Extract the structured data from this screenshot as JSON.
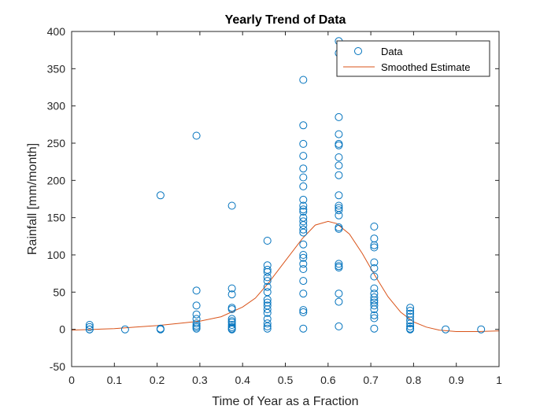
{
  "chart_data": {
    "type": "scatter",
    "title": "Yearly Trend of Data",
    "xlabel": "Time of Year as a Fraction",
    "ylabel": "Rainfall [mm/month]",
    "xlim": [
      0,
      1
    ],
    "ylim": [
      -50,
      400
    ],
    "xticks": [
      "0",
      "0.1",
      "0.2",
      "0.3",
      "0.4",
      "0.5",
      "0.6",
      "0.7",
      "0.8",
      "0.9",
      "1"
    ],
    "yticks": [
      "-50",
      "0",
      "50",
      "100",
      "150",
      "200",
      "250",
      "300",
      "350",
      "400"
    ],
    "xtick_values": [
      0,
      0.1,
      0.2,
      0.3,
      0.4,
      0.5,
      0.6,
      0.7,
      0.8,
      0.9,
      1
    ],
    "ytick_values": [
      -50,
      0,
      50,
      100,
      150,
      200,
      250,
      300,
      350,
      400
    ],
    "grid": false,
    "legend_placement": "top-right",
    "series": [
      {
        "name": "Data",
        "kind": "markers",
        "color": "#0072BD",
        "points": [
          [
            0.042,
            6
          ],
          [
            0.042,
            3
          ],
          [
            0.042,
            0
          ],
          [
            0.042,
            0
          ],
          [
            0.125,
            0
          ],
          [
            0.208,
            180
          ],
          [
            0.208,
            1
          ],
          [
            0.208,
            0
          ],
          [
            0.292,
            260
          ],
          [
            0.292,
            52
          ],
          [
            0.292,
            32
          ],
          [
            0.292,
            20
          ],
          [
            0.292,
            14
          ],
          [
            0.292,
            8
          ],
          [
            0.292,
            5
          ],
          [
            0.292,
            3
          ],
          [
            0.292,
            1
          ],
          [
            0.375,
            166
          ],
          [
            0.375,
            55
          ],
          [
            0.375,
            47
          ],
          [
            0.375,
            29
          ],
          [
            0.375,
            27
          ],
          [
            0.375,
            14
          ],
          [
            0.375,
            11
          ],
          [
            0.375,
            9
          ],
          [
            0.375,
            6
          ],
          [
            0.375,
            3
          ],
          [
            0.375,
            1
          ],
          [
            0.375,
            0
          ],
          [
            0.458,
            119
          ],
          [
            0.458,
            86
          ],
          [
            0.458,
            80
          ],
          [
            0.458,
            77
          ],
          [
            0.458,
            70
          ],
          [
            0.458,
            65
          ],
          [
            0.458,
            57
          ],
          [
            0.458,
            50
          ],
          [
            0.458,
            40
          ],
          [
            0.458,
            36
          ],
          [
            0.458,
            32
          ],
          [
            0.458,
            27
          ],
          [
            0.458,
            22
          ],
          [
            0.458,
            14
          ],
          [
            0.458,
            8
          ],
          [
            0.458,
            4
          ],
          [
            0.458,
            1
          ],
          [
            0.542,
            335
          ],
          [
            0.542,
            274
          ],
          [
            0.542,
            249
          ],
          [
            0.542,
            233
          ],
          [
            0.542,
            216
          ],
          [
            0.542,
            204
          ],
          [
            0.542,
            192
          ],
          [
            0.542,
            174
          ],
          [
            0.542,
            166
          ],
          [
            0.542,
            161
          ],
          [
            0.542,
            158
          ],
          [
            0.542,
            150
          ],
          [
            0.542,
            145
          ],
          [
            0.542,
            140
          ],
          [
            0.542,
            134
          ],
          [
            0.542,
            130
          ],
          [
            0.542,
            114
          ],
          [
            0.542,
            100
          ],
          [
            0.542,
            96
          ],
          [
            0.542,
            88
          ],
          [
            0.542,
            81
          ],
          [
            0.542,
            65
          ],
          [
            0.542,
            48
          ],
          [
            0.542,
            26
          ],
          [
            0.542,
            23
          ],
          [
            0.542,
            1
          ],
          [
            0.625,
            387
          ],
          [
            0.625,
            371
          ],
          [
            0.625,
            285
          ],
          [
            0.625,
            262
          ],
          [
            0.625,
            249
          ],
          [
            0.625,
            247
          ],
          [
            0.625,
            231
          ],
          [
            0.625,
            220
          ],
          [
            0.625,
            207
          ],
          [
            0.625,
            180
          ],
          [
            0.625,
            166
          ],
          [
            0.625,
            163
          ],
          [
            0.625,
            160
          ],
          [
            0.625,
            153
          ],
          [
            0.625,
            137
          ],
          [
            0.625,
            135
          ],
          [
            0.625,
            88
          ],
          [
            0.625,
            85
          ],
          [
            0.625,
            83
          ],
          [
            0.625,
            48
          ],
          [
            0.625,
            37
          ],
          [
            0.625,
            4
          ],
          [
            0.708,
            138
          ],
          [
            0.708,
            122
          ],
          [
            0.708,
            113
          ],
          [
            0.708,
            110
          ],
          [
            0.708,
            90
          ],
          [
            0.708,
            82
          ],
          [
            0.708,
            71
          ],
          [
            0.708,
            55
          ],
          [
            0.708,
            48
          ],
          [
            0.708,
            43
          ],
          [
            0.708,
            39
          ],
          [
            0.708,
            36
          ],
          [
            0.708,
            32
          ],
          [
            0.708,
            27
          ],
          [
            0.708,
            19
          ],
          [
            0.708,
            15
          ],
          [
            0.708,
            1
          ],
          [
            0.792,
            29
          ],
          [
            0.792,
            25
          ],
          [
            0.792,
            21
          ],
          [
            0.792,
            17
          ],
          [
            0.792,
            12
          ],
          [
            0.792,
            8
          ],
          [
            0.792,
            4
          ],
          [
            0.792,
            1
          ],
          [
            0.792,
            0
          ],
          [
            0.875,
            0
          ],
          [
            0.958,
            0
          ]
        ]
      },
      {
        "name": "Smoothed Estimate",
        "kind": "line",
        "color": "#D95319",
        "points": [
          [
            0,
            -1
          ],
          [
            0.05,
            0
          ],
          [
            0.1,
            1
          ],
          [
            0.15,
            3
          ],
          [
            0.2,
            5
          ],
          [
            0.25,
            8
          ],
          [
            0.3,
            11
          ],
          [
            0.35,
            17
          ],
          [
            0.4,
            30
          ],
          [
            0.43,
            42
          ],
          [
            0.46,
            62
          ],
          [
            0.5,
            92
          ],
          [
            0.54,
            122
          ],
          [
            0.57,
            140
          ],
          [
            0.6,
            145
          ],
          [
            0.62,
            142
          ],
          [
            0.65,
            128
          ],
          [
            0.68,
            102
          ],
          [
            0.71,
            72
          ],
          [
            0.74,
            44
          ],
          [
            0.77,
            23
          ],
          [
            0.8,
            10
          ],
          [
            0.83,
            3
          ],
          [
            0.86,
            -1
          ],
          [
            0.9,
            -3
          ],
          [
            0.95,
            -3
          ],
          [
            1,
            -2
          ]
        ]
      }
    ]
  }
}
